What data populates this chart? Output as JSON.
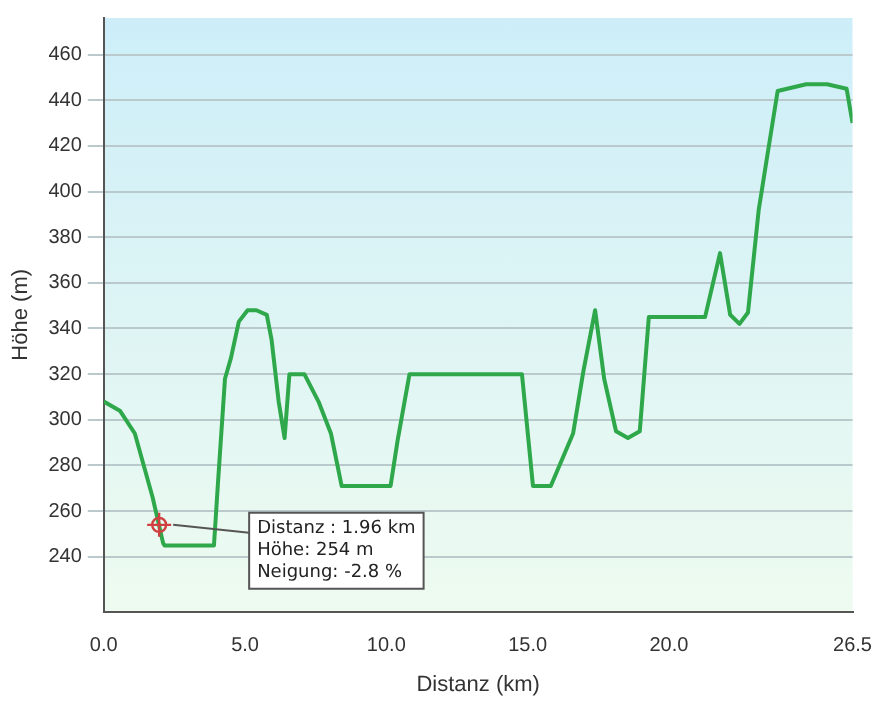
{
  "chart_data": {
    "type": "line",
    "xlabel": "Distanz (km)",
    "ylabel": "Höhe (m)",
    "series": [
      {
        "color": "#2ea84a",
        "x": [
          0,
          0.57,
          1.1,
          1.73,
          2.1,
          2.15,
          3.9,
          4.04,
          4.29,
          4.5,
          4.78,
          5.09,
          5.4,
          5.77,
          5.94,
          6.19,
          6.4,
          6.57,
          7.1,
          7.6,
          8.04,
          8.42,
          10.15,
          10.4,
          10.82,
          14.8,
          15.19,
          15.82,
          16.61,
          16.97,
          17.39,
          17.71,
          18.13,
          18.55,
          18.97,
          19.29,
          21.28,
          21.81,
          22.17,
          22.5,
          22.8,
          23.18,
          23.5,
          23.85,
          24.86,
          25.6,
          26.29,
          26.5
        ],
        "values": [
          308,
          304,
          294,
          266,
          246,
          245,
          245,
          272,
          318,
          327,
          343,
          348,
          348,
          346,
          335,
          308,
          292,
          320,
          320,
          308,
          294,
          271,
          271,
          291,
          320,
          320,
          271,
          271,
          294,
          321,
          348,
          318,
          295,
          292,
          295,
          345,
          345,
          373,
          346,
          342,
          347,
          392,
          417,
          444,
          447,
          447,
          445,
          430
        ]
      }
    ],
    "xlim": [
      0,
      26.5
    ],
    "ylim": [
      216,
      476
    ],
    "xticks": [
      {
        "value": 0,
        "label": "0.0"
      },
      {
        "value": 5,
        "label": "5.0"
      },
      {
        "value": 10,
        "label": "10.0"
      },
      {
        "value": 15,
        "label": "15.0"
      },
      {
        "value": 20,
        "label": "20.0"
      },
      {
        "value": 26.5,
        "label": "26.5"
      }
    ],
    "yticks": [
      240,
      260,
      280,
      300,
      320,
      340,
      360,
      380,
      400,
      420,
      440,
      460
    ],
    "grid": "y",
    "marker": "none",
    "legend": false,
    "annotations": [
      {
        "text": "Distanz : 1.96 km\nHöhe: 254 m\nNeigung: -2.8 %",
        "x": 1.96,
        "y": 254
      }
    ]
  }
}
